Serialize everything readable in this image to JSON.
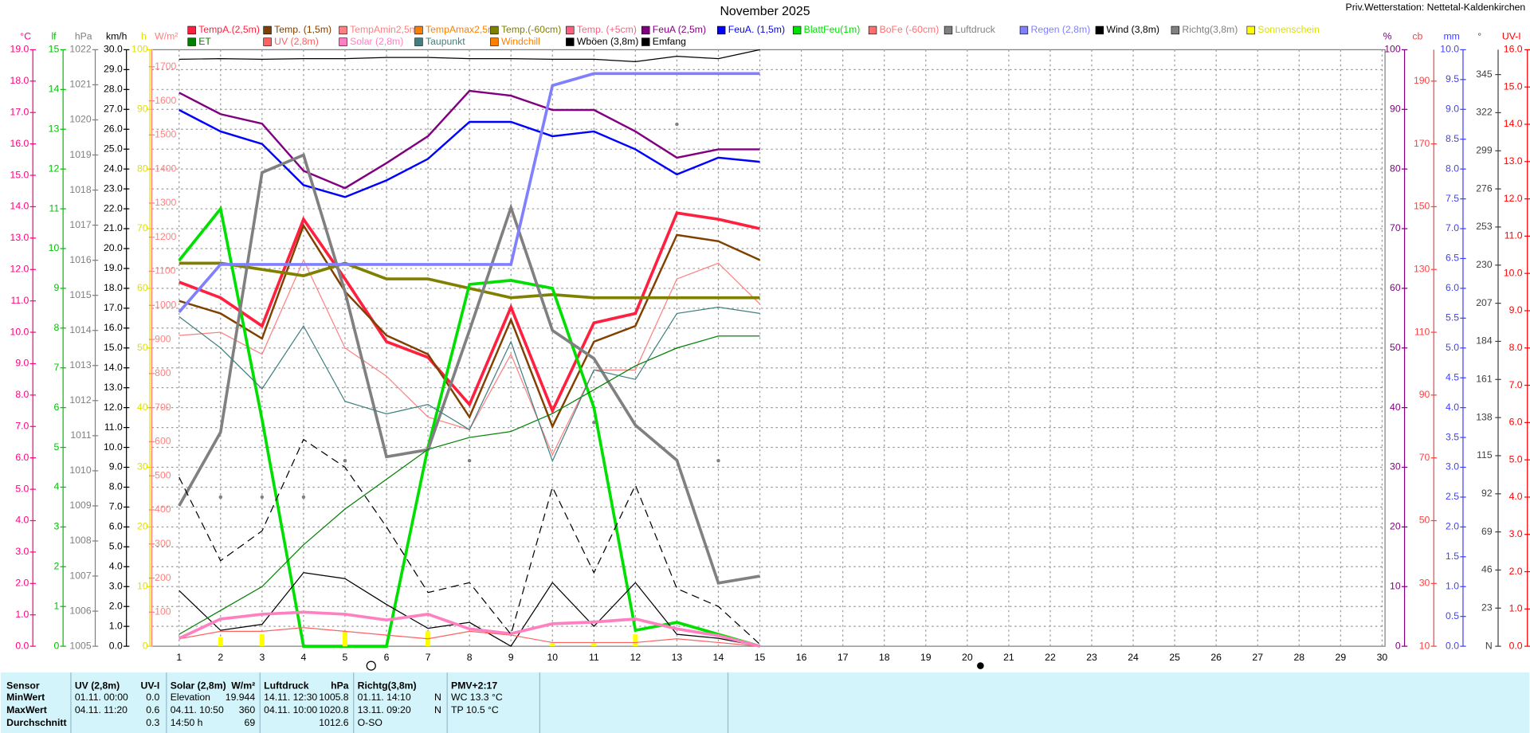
{
  "chart_data": {
    "type": "line",
    "title": "November 2025",
    "subtitle": "Priv.Wetterstation: Nettetal-Kaldenkirchen",
    "x": [
      1,
      2,
      3,
      4,
      5,
      6,
      7,
      8,
      9,
      10,
      11,
      12,
      13,
      14,
      15
    ],
    "xlim": [
      1,
      30
    ],
    "xticks": [
      1,
      2,
      3,
      4,
      5,
      6,
      7,
      8,
      9,
      10,
      11,
      12,
      13,
      14,
      15,
      16,
      17,
      18,
      19,
      20,
      21,
      22,
      23,
      24,
      25,
      26,
      27,
      28,
      29,
      30
    ],
    "grid": true,
    "axes": [
      {
        "label": "°C",
        "side": "left",
        "color": "#ff0080",
        "ylim": [
          0,
          19
        ],
        "yticks": [
          {
            "value": 0,
            "label": "0.0"
          },
          {
            "value": 1,
            "label": "1.0"
          },
          {
            "value": 2,
            "label": "2.0"
          },
          {
            "value": 3,
            "label": "3.0"
          },
          {
            "value": 4,
            "label": "4.0"
          },
          {
            "value": 5,
            "label": "5.0"
          },
          {
            "value": 6,
            "label": "6.0"
          },
          {
            "value": 7,
            "label": "7.0"
          },
          {
            "value": 8,
            "label": "8.0"
          },
          {
            "value": 9,
            "label": "9.0"
          },
          {
            "value": 10,
            "label": "10.0"
          },
          {
            "value": 11,
            "label": "11.0"
          },
          {
            "value": 12,
            "label": "12.0"
          },
          {
            "value": 13,
            "label": "13.0"
          },
          {
            "value": 14,
            "label": "14.0"
          },
          {
            "value": 15,
            "label": "15.0"
          },
          {
            "value": 16,
            "label": "16.0"
          },
          {
            "value": 17,
            "label": "17.0"
          },
          {
            "value": 18,
            "label": "18.0"
          },
          {
            "value": 19,
            "label": "19.0"
          }
        ]
      },
      {
        "label": "lf",
        "side": "left",
        "color": "#00c000",
        "ylim": [
          0,
          15
        ],
        "yticks": [
          0,
          1,
          2,
          3,
          4,
          5,
          6,
          7,
          8,
          9,
          10,
          11,
          12,
          13,
          14,
          15
        ]
      },
      {
        "label": "hPa",
        "side": "left",
        "color": "#808080",
        "ylim": [
          1005,
          1022
        ],
        "yticks": [
          1005,
          1006,
          1007,
          1008,
          1009,
          1010,
          1011,
          1012,
          1013,
          1014,
          1015,
          1016,
          1017,
          1018,
          1019,
          1020,
          1021,
          1022
        ]
      },
      {
        "label": "km/h",
        "side": "left",
        "color": "#000000",
        "ylim": [
          0,
          30
        ],
        "yticks": [
          {
            "value": 0,
            "label": "0.0"
          },
          {
            "value": 1,
            "label": "1.0"
          },
          {
            "value": 2,
            "label": "2.0"
          },
          {
            "value": 3,
            "label": "3.0"
          },
          {
            "value": 4,
            "label": "4.0"
          },
          {
            "value": 5,
            "label": "5.0"
          },
          {
            "value": 6,
            "label": "6.0"
          },
          {
            "value": 7,
            "label": "7.0"
          },
          {
            "value": 8,
            "label": "8.0"
          },
          {
            "value": 9,
            "label": "9.0"
          },
          {
            "value": 10,
            "label": "10.0"
          },
          {
            "value": 11,
            "label": "11.0"
          },
          {
            "value": 12,
            "label": "12.0"
          },
          {
            "value": 13,
            "label": "13.0"
          },
          {
            "value": 14,
            "label": "14.0"
          },
          {
            "value": 15,
            "label": "15.0"
          },
          {
            "value": 16,
            "label": "16.0"
          },
          {
            "value": 17,
            "label": "17.0"
          },
          {
            "value": 18,
            "label": "18.0"
          },
          {
            "value": 19,
            "label": "19.0"
          },
          {
            "value": 20,
            "label": "20.0"
          },
          {
            "value": 21,
            "label": "21.0"
          },
          {
            "value": 22,
            "label": "22.0"
          },
          {
            "value": 23,
            "label": "23.0"
          },
          {
            "value": 24,
            "label": "24.0"
          },
          {
            "value": 25,
            "label": "25.0"
          },
          {
            "value": 26,
            "label": "26.0"
          },
          {
            "value": 27,
            "label": "27.0"
          },
          {
            "value": 28,
            "label": "28.0"
          },
          {
            "value": 29,
            "label": "29.0"
          },
          {
            "value": 30,
            "label": "30.0"
          }
        ]
      },
      {
        "label": "h",
        "side": "left",
        "color": "#e0e000",
        "ylim": [
          0,
          100
        ],
        "yticks": [
          0,
          10,
          20,
          30,
          40,
          50,
          60,
          70,
          80,
          90,
          100
        ]
      },
      {
        "label": "W/m²",
        "side": "left",
        "color": "#ff8080",
        "ylim": [
          0,
          1750
        ],
        "yticks": [
          100,
          200,
          300,
          400,
          500,
          600,
          700,
          800,
          900,
          1000,
          1100,
          1200,
          1300,
          1400,
          1500,
          1600,
          1700
        ]
      },
      {
        "label": "%",
        "side": "right",
        "color": "#800080",
        "ylim": [
          0,
          100
        ],
        "yticks": [
          0,
          10,
          20,
          30,
          40,
          50,
          60,
          70,
          80,
          90,
          100
        ]
      },
      {
        "label": "cb",
        "side": "right",
        "color": "#ff4040",
        "ylim": [
          10,
          200
        ],
        "yticks": [
          10,
          30,
          50,
          70,
          90,
          110,
          130,
          150,
          170,
          190
        ]
      },
      {
        "label": "mm",
        "side": "right",
        "color": "#4040ff",
        "ylim": [
          0,
          10
        ],
        "yticks": [
          {
            "value": 0,
            "label": "0.0"
          },
          {
            "value": 0.5,
            "label": "0.5"
          },
          {
            "value": 1,
            "label": "1.0"
          },
          {
            "value": 1.5,
            "label": "1.5"
          },
          {
            "value": 2,
            "label": "2.0"
          },
          {
            "value": 2.5,
            "label": "2.5"
          },
          {
            "value": 3,
            "label": "3.0"
          },
          {
            "value": 3.5,
            "label": "3.5"
          },
          {
            "value": 4,
            "label": "4.0"
          },
          {
            "value": 4.5,
            "label": "4.5"
          },
          {
            "value": 5,
            "label": "5.0"
          },
          {
            "value": 5.5,
            "label": "5.5"
          },
          {
            "value": 6,
            "label": "6.0"
          },
          {
            "value": 6.5,
            "label": "6.5"
          },
          {
            "value": 7,
            "label": "7.0"
          },
          {
            "value": 7.5,
            "label": "7.5"
          },
          {
            "value": 8,
            "label": "8.0"
          },
          {
            "value": 8.5,
            "label": "8.5"
          },
          {
            "value": 9,
            "label": "9.0"
          },
          {
            "value": 9.5,
            "label": "9.5"
          },
          {
            "value": 10,
            "label": "10.0"
          }
        ]
      },
      {
        "label": "°",
        "side": "right",
        "color": "#404040",
        "ylim": [
          0,
          360
        ],
        "yticks": [
          {
            "value": 0,
            "label": "N"
          },
          23,
          46,
          69,
          92,
          115,
          138,
          161,
          184,
          207,
          230,
          253,
          276,
          299,
          322,
          345
        ]
      },
      {
        "label": "UV-I",
        "side": "right",
        "color": "#ff0000",
        "ylim": [
          0,
          16
        ],
        "yticks": [
          {
            "value": 0,
            "label": "0.0"
          },
          {
            "value": 1,
            "label": "1.0"
          },
          {
            "value": 2,
            "label": "2.0"
          },
          {
            "value": 3,
            "label": "3.0"
          },
          {
            "value": 4,
            "label": "4.0"
          },
          {
            "value": 5,
            "label": "5.0"
          },
          {
            "value": 6,
            "label": "6.0"
          },
          {
            "value": 7,
            "label": "7.0"
          },
          {
            "value": 8,
            "label": "8.0"
          },
          {
            "value": 9,
            "label": "9.0"
          },
          {
            "value": 10,
            "label": "10.0"
          },
          {
            "value": 11,
            "label": "11.0"
          },
          {
            "value": 12,
            "label": "12.0"
          },
          {
            "value": 13,
            "label": "13.0"
          },
          {
            "value": 14,
            "label": "14.0"
          },
          {
            "value": 15,
            "label": "15.0"
          },
          {
            "value": 16,
            "label": "16.0"
          }
        ]
      }
    ],
    "series": [
      {
        "name": "TempA.(2,5m)",
        "color": "#ff2040",
        "axis": "°C",
        "values": [
          11.6,
          11.1,
          10.2,
          13.6,
          11.7,
          9.7,
          9.2,
          7.7,
          10.8,
          7.5,
          10.3,
          10.6,
          13.8,
          13.6,
          13.3
        ]
      },
      {
        "name": "Temp. (1,5m)",
        "color": "#804000",
        "axis": "°C",
        "values": [
          11.0,
          10.6,
          9.8,
          13.4,
          11.3,
          9.9,
          9.3,
          7.3,
          10.4,
          7.0,
          9.7,
          10.2,
          13.1,
          12.9,
          12.3
        ]
      },
      {
        "name": "TempAmin2,5m",
        "color": "#ff8080",
        "axis": "°C",
        "values": [
          9.9,
          10.0,
          9.3,
          12.3,
          9.5,
          8.6,
          7.3,
          6.9,
          9.3,
          6.1,
          8.8,
          8.8,
          11.7,
          12.2,
          10.9
        ]
      },
      {
        "name": "TempAmax2,5m",
        "color": "#ff8000"
      },
      {
        "name": "Temp.(-60cm)",
        "color": "#808000",
        "axis": "°C",
        "values": [
          12.2,
          12.2,
          12.0,
          11.8,
          12.2,
          11.7,
          11.7,
          11.4,
          11.1,
          11.2,
          11.1,
          11.1,
          11.1,
          11.1,
          11.1
        ]
      },
      {
        "name": "Temp. (+5cm)",
        "color": "#ff6080"
      },
      {
        "name": "FeuA (2,5m)",
        "color": "#800080",
        "axis": "%",
        "values": [
          92.8,
          89.2,
          87.6,
          79.7,
          76.8,
          81.0,
          85.5,
          93.1,
          92.3,
          89.9,
          89.9,
          86.3,
          81.9,
          83.3,
          83.3
        ]
      },
      {
        "name": "FeuA. (1,5m)",
        "color": "#0000ff",
        "axis": "%",
        "values": [
          89.9,
          86.3,
          84.2,
          77.3,
          75.3,
          78.1,
          81.7,
          87.9,
          87.9,
          85.5,
          86.3,
          83.3,
          79.1,
          81.9,
          81.2
        ]
      },
      {
        "name": "BlattFeu(1m)",
        "color": "#00e000",
        "axis": "lf",
        "values": [
          9.7,
          11.0,
          5.7,
          0,
          0,
          0,
          5.0,
          9.1,
          9.2,
          9.0,
          6.0,
          0.4,
          0.6,
          0.3,
          0
        ]
      },
      {
        "name": "BoFe (-60cm)",
        "color": "#ff7070"
      },
      {
        "name": "Luftdruck",
        "color": "#808080",
        "axis": "hPa",
        "values": [
          1009.0,
          1011.1,
          1018.5,
          1019.0,
          1015.1,
          1010.4,
          1010.6,
          1014.0,
          1017.5,
          1014.0,
          1013.2,
          1011.3,
          1010.3,
          1006.8,
          1007.0
        ]
      },
      {
        "name": "Regen (2,8m)",
        "color": "#8080ff",
        "axis": "mm",
        "values": [
          5.6,
          6.4,
          6.4,
          6.4,
          6.4,
          6.4,
          6.4,
          6.4,
          6.4,
          9.4,
          9.6,
          9.6,
          9.6,
          9.6,
          9.6
        ]
      },
      {
        "name": "Wind (3,8m)",
        "color": "#000000",
        "axis": "km/h",
        "values": [
          2.8,
          0.8,
          1.1,
          3.7,
          3.4,
          2.1,
          0.9,
          1.2,
          0,
          3.2,
          1.0,
          3.2,
          0.6,
          0.4,
          0
        ]
      },
      {
        "name": "Richtg(3,8m)",
        "color": "#808080",
        "axis": "°",
        "type": "scatter",
        "values": [
          null,
          90,
          90,
          90,
          112,
          null,
          null,
          112,
          null,
          null,
          135,
          null,
          315,
          112,
          null
        ]
      },
      {
        "name": "Sonnenschein",
        "color": "#ffff00",
        "axis": "h",
        "type": "bar",
        "values": [
          0,
          1.5,
          2.0,
          0,
          2.5,
          0,
          2.5,
          0,
          0,
          0.5,
          0.5,
          2.0,
          0,
          0,
          0
        ]
      },
      {
        "name": "ET",
        "color": "#008000",
        "axis": "mm",
        "values": [
          0.2,
          0.6,
          1.0,
          1.7,
          2.3,
          2.8,
          3.3,
          3.5,
          3.6,
          3.9,
          4.3,
          4.7,
          5.0,
          5.2,
          5.2
        ]
      },
      {
        "name": "UV (2,8m)",
        "color": "#ff6060",
        "axis": "UV-I",
        "values": [
          0.2,
          0.4,
          0.4,
          0.5,
          0.4,
          0.3,
          0.2,
          0.4,
          0.3,
          0.1,
          0.1,
          0.1,
          0.2,
          0.1,
          0
        ]
      },
      {
        "name": "Solar (2,8m)",
        "color": "#ff80c0",
        "axis": "W/m²",
        "values": [
          23,
          80,
          94,
          100,
          94,
          77,
          94,
          51,
          37,
          66,
          71,
          80,
          51,
          31,
          0
        ]
      },
      {
        "name": "Taupunkt",
        "color": "#408080",
        "axis": "°C",
        "values": [
          10.5,
          9.5,
          8.2,
          10.2,
          7.8,
          7.4,
          7.7,
          6.9,
          9.7,
          5.9,
          8.8,
          8.5,
          10.6,
          10.8,
          10.6
        ]
      },
      {
        "name": "Windchill",
        "color": "#ff8000"
      },
      {
        "name": "Wböen (3,8m)",
        "color": "#000000",
        "axis": "km/h",
        "dash": true,
        "values": [
          8.5,
          4.3,
          5.8,
          10.4,
          9.0,
          6.0,
          2.7,
          3.2,
          0.6,
          8.0,
          3.7,
          8.1,
          2.9,
          2.0,
          0.1
        ]
      },
      {
        "name": "Emfang",
        "color": "#000000",
        "axis": "%",
        "values": [
          98.4,
          98.5,
          98.4,
          98.5,
          98.5,
          98.7,
          98.7,
          98.5,
          98.5,
          98.4,
          98.4,
          98.0,
          98.9,
          98.5,
          100
        ]
      }
    ]
  },
  "footer": {
    "row_labels": [
      "Sensor",
      "MinWert",
      "MaxWert",
      "Durchschnitt"
    ],
    "columns": [
      {
        "header": [
          "UV (2,8m)",
          "UV-I"
        ],
        "min": [
          "01.11. 00:00",
          "0.0"
        ],
        "max": [
          "04.11. 11:20",
          "0.6"
        ],
        "avg": [
          "0.3"
        ]
      },
      {
        "header": [
          "Solar (2,8m)",
          "W/m²"
        ],
        "min": [
          "Elevation",
          "19.944"
        ],
        "max": [
          "04.11. 10:50",
          "360"
        ],
        "avg": [
          "14:50 h",
          "69"
        ]
      },
      {
        "header": [
          "Luftdruck",
          "hPa"
        ],
        "min": [
          "14.11. 12:30",
          "1005.8"
        ],
        "max": [
          "04.11. 10:00",
          "1020.8"
        ],
        "avg": [
          "1012.6"
        ]
      },
      {
        "header": [
          "Richtg(3,8m)"
        ],
        "min": [
          "01.11. 14:10",
          "N"
        ],
        "max": [
          "13.11. 09:20",
          "N"
        ],
        "avg": [
          "O-SO"
        ]
      },
      {
        "header": [
          "PMV+2:17"
        ],
        "min": [
          "WC 13.3 °C"
        ],
        "max": [
          "TP 10.5 °C"
        ]
      }
    ]
  }
}
